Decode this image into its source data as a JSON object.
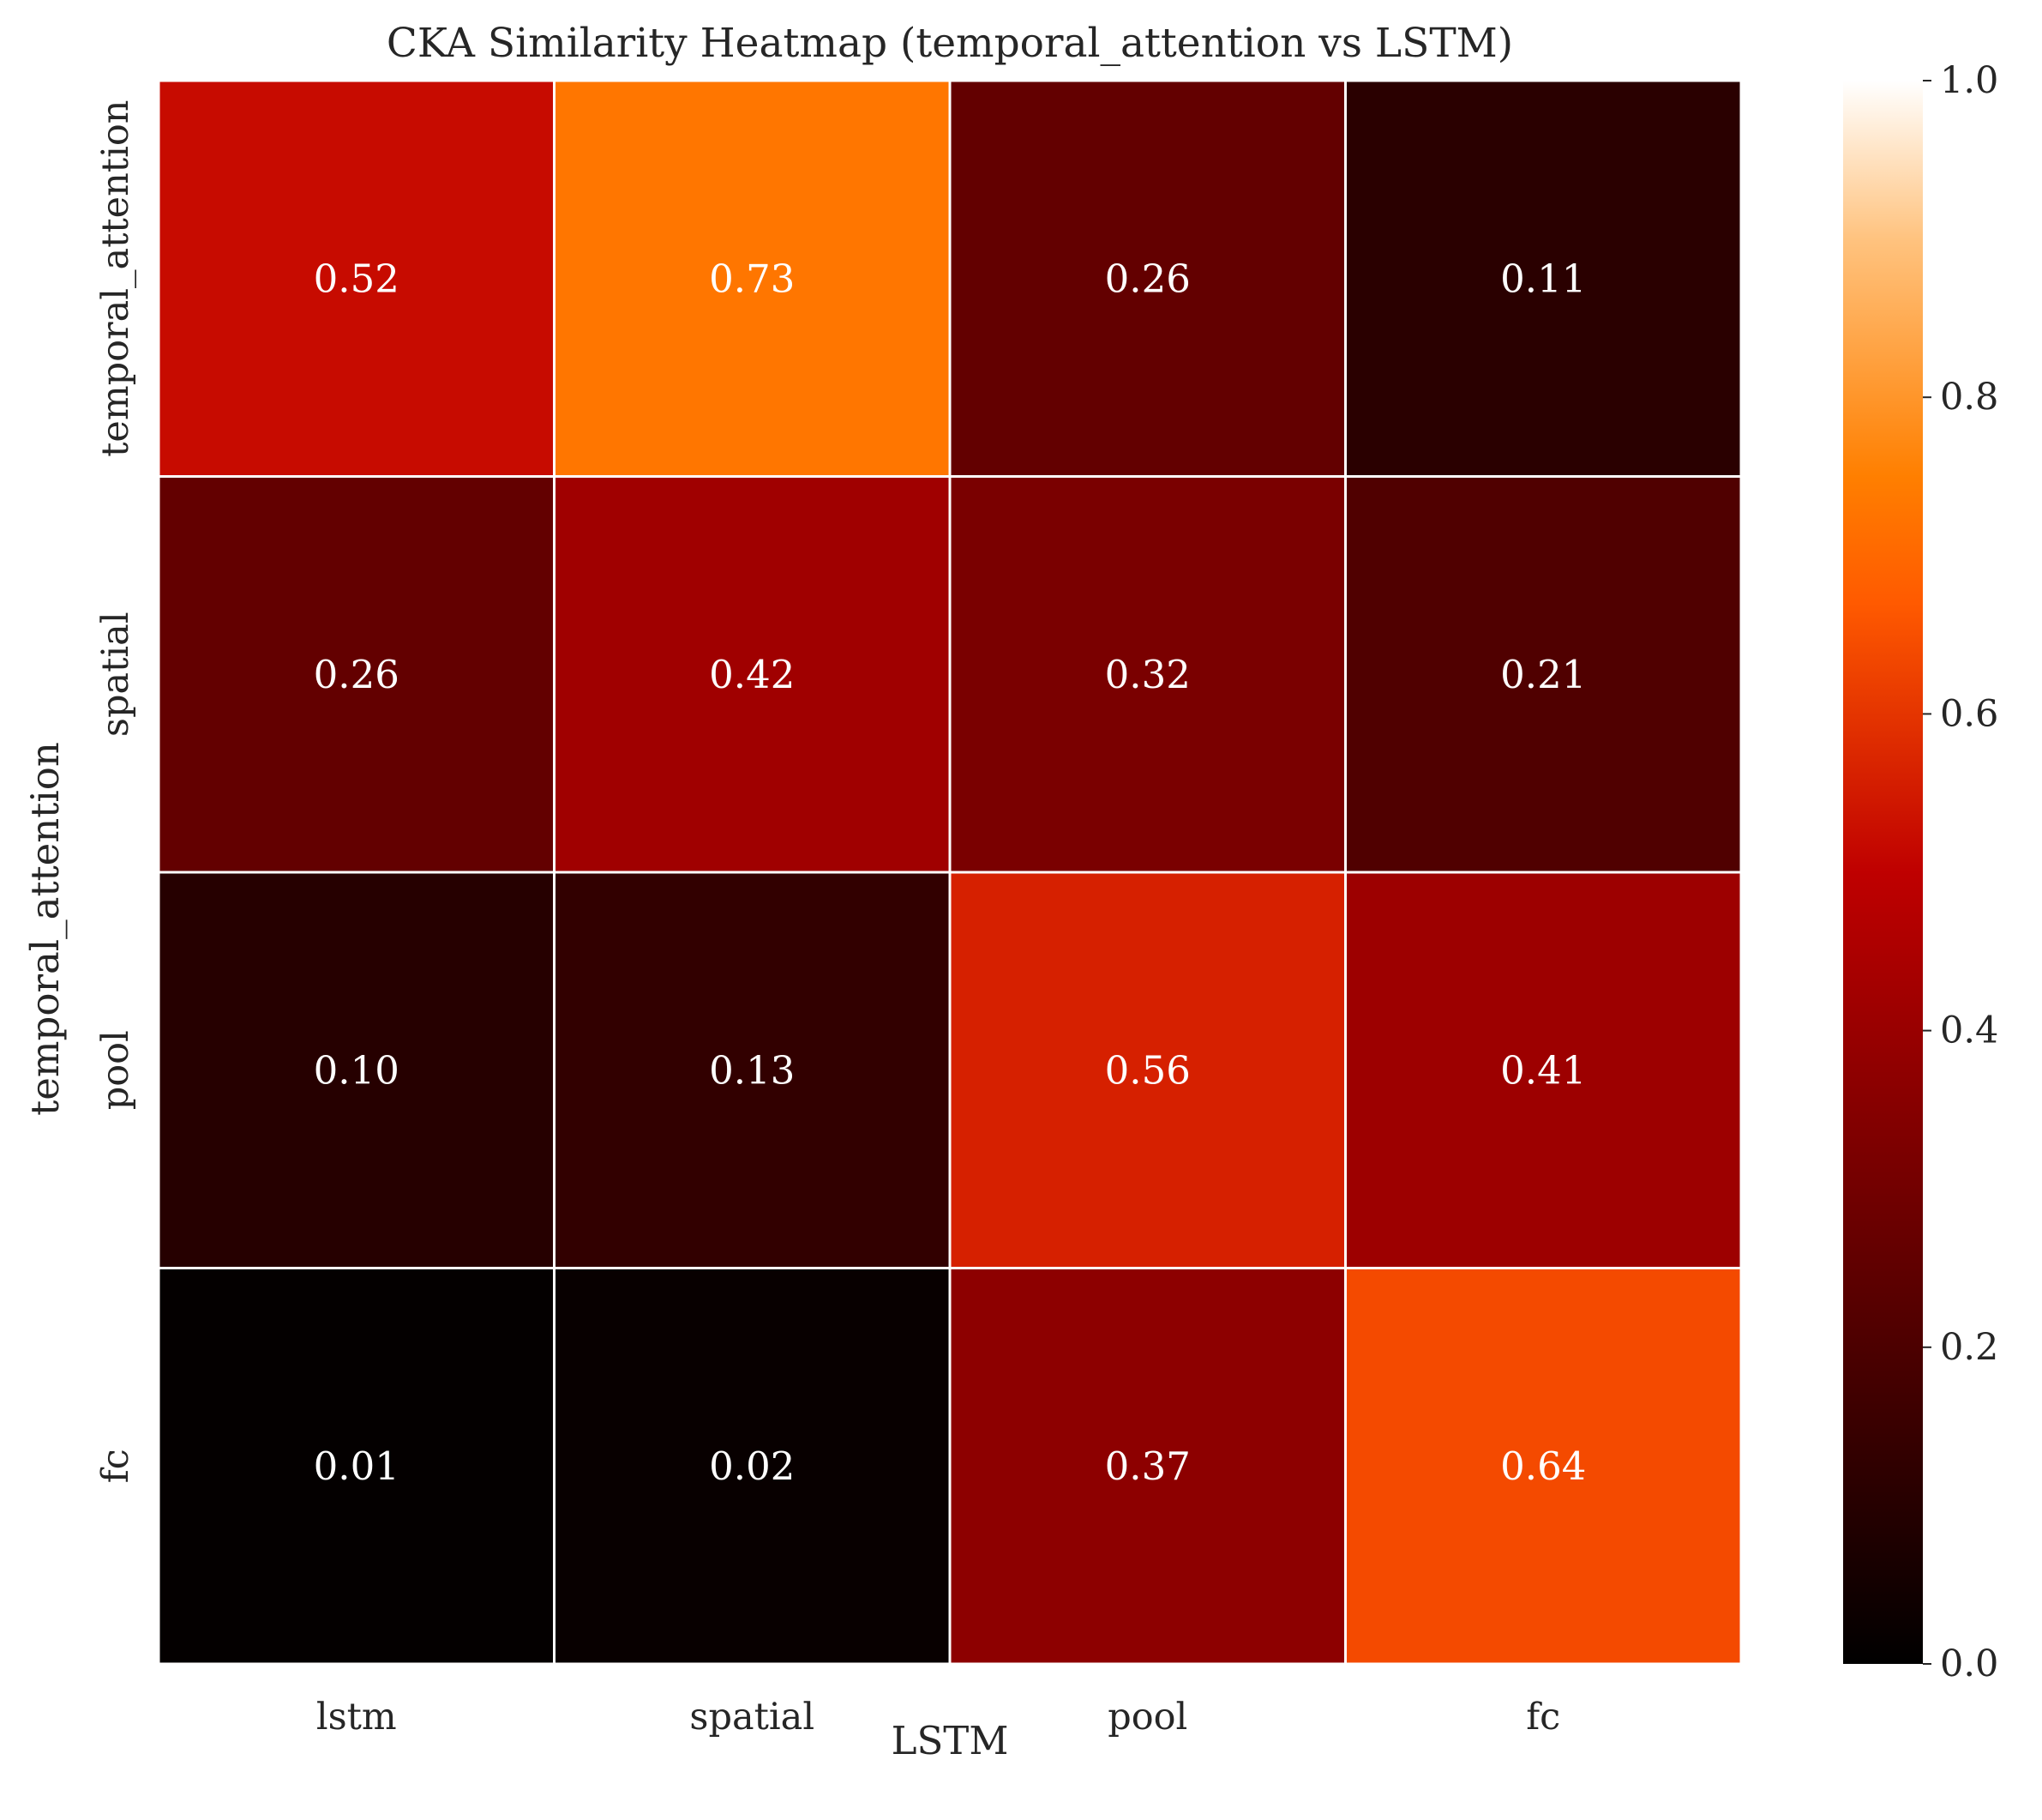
{
  "chart_data": {
    "type": "heatmap",
    "title": "CKA Similarity Heatmap (temporal_attention vs LSTM)",
    "xlabel": "LSTM",
    "ylabel": "temporal_attention",
    "x_categories": [
      "lstm",
      "spatial",
      "pool",
      "fc"
    ],
    "y_categories": [
      "temporal_attention",
      "spatial",
      "pool",
      "fc"
    ],
    "values": [
      [
        0.52,
        0.73,
        0.26,
        0.11
      ],
      [
        0.26,
        0.42,
        0.32,
        0.21
      ],
      [
        0.1,
        0.13,
        0.56,
        0.41
      ],
      [
        0.01,
        0.02,
        0.37,
        0.64
      ]
    ],
    "value_format": "2-decimal",
    "colormap": "gist_heat",
    "colorbar": {
      "range": [
        0.0,
        1.0
      ],
      "ticks": [
        "0.0",
        "0.2",
        "0.4",
        "0.6",
        "0.8",
        "1.0"
      ]
    },
    "grid_line_color": "#ffffff",
    "annotation_color": "#ffffff",
    "text_color": "#262626"
  }
}
